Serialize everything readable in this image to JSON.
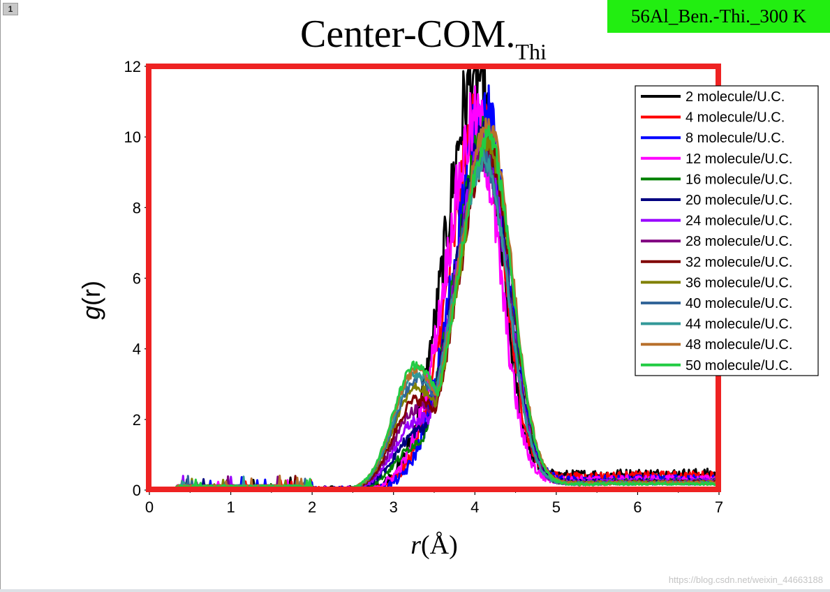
{
  "page_number": "1",
  "badge": "56Al_Ben.-Thi._300 K",
  "watermark": "https://blog.csdn.net/weixin_44663188",
  "chart_data": {
    "type": "line",
    "title": "Center-COM.",
    "title_subscript": "Thi",
    "xlabel_italic": "r",
    "xlabel_unit": "(Å)",
    "ylabel_italic": "g",
    "ylabel_unit": "(r)",
    "xlim": [
      0,
      7
    ],
    "ylim": [
      0,
      12
    ],
    "x_ticks": [
      "0",
      "1",
      "2",
      "3",
      "4",
      "5",
      "6",
      "7"
    ],
    "y_ticks": [
      "0",
      "2",
      "4",
      "6",
      "8",
      "10",
      "12"
    ],
    "legend_position": "top-right",
    "highlight_box_color": "#ee2222",
    "series": [
      {
        "name": "2 molecule/U.C.",
        "color": "#000000",
        "peak": 11.8,
        "peak_r": 4.0,
        "shoulder": 0.0,
        "tail": 0.45,
        "onset": 2.6,
        "noise": 0.45
      },
      {
        "name": "4 molecule/U.C.",
        "color": "#ff0000",
        "peak": 10.5,
        "peak_r": 4.05,
        "shoulder": 0.0,
        "tail": 0.4,
        "onset": 2.5,
        "noise": 0.4
      },
      {
        "name": "8 molecule/U.C.",
        "color": "#0000ff",
        "peak": 10.6,
        "peak_r": 4.1,
        "shoulder": 0.0,
        "tail": 0.3,
        "onset": 2.5,
        "noise": 0.4
      },
      {
        "name": "12 molecule/U.C.",
        "color": "#ff00ff",
        "peak": 10.4,
        "peak_r": 4.0,
        "shoulder": 0.0,
        "tail": 0.3,
        "onset": 2.5,
        "noise": 0.38
      },
      {
        "name": "16 molecule/U.C.",
        "color": "#008000",
        "peak": 9.9,
        "peak_r": 4.1,
        "shoulder": 0.3,
        "tail": 0.25,
        "onset": 2.4,
        "noise": 0.25
      },
      {
        "name": "20 molecule/U.C.",
        "color": "#000080",
        "peak": 9.8,
        "peak_r": 4.1,
        "shoulder": 0.4,
        "tail": 0.25,
        "onset": 2.4,
        "noise": 0.25
      },
      {
        "name": "24 molecule/U.C.",
        "color": "#9900ff",
        "peak": 9.6,
        "peak_r": 4.1,
        "shoulder": 0.5,
        "tail": 0.25,
        "onset": 2.3,
        "noise": 0.22
      },
      {
        "name": "28 molecule/U.C.",
        "color": "#800080",
        "peak": 9.5,
        "peak_r": 4.1,
        "shoulder": 0.6,
        "tail": 0.22,
        "onset": 2.3,
        "noise": 0.2
      },
      {
        "name": "32 molecule/U.C.",
        "color": "#800000",
        "peak": 9.6,
        "peak_r": 4.15,
        "shoulder": 0.7,
        "tail": 0.22,
        "onset": 2.3,
        "noise": 0.18
      },
      {
        "name": "36 molecule/U.C.",
        "color": "#808000",
        "peak": 9.8,
        "peak_r": 4.15,
        "shoulder": 0.8,
        "tail": 0.22,
        "onset": 2.2,
        "noise": 0.16
      },
      {
        "name": "40 molecule/U.C.",
        "color": "#336699",
        "peak": 9.4,
        "peak_r": 4.1,
        "shoulder": 0.85,
        "tail": 0.2,
        "onset": 2.2,
        "noise": 0.15
      },
      {
        "name": "44 molecule/U.C.",
        "color": "#339999",
        "peak": 9.3,
        "peak_r": 4.1,
        "shoulder": 0.9,
        "tail": 0.2,
        "onset": 2.2,
        "noise": 0.14
      },
      {
        "name": "48 molecule/U.C.",
        "color": "#b8702c",
        "peak": 10.4,
        "peak_r": 4.15,
        "shoulder": 0.95,
        "tail": 0.2,
        "onset": 2.2,
        "noise": 0.14
      },
      {
        "name": "50 molecule/U.C.",
        "color": "#22cc44",
        "peak": 10.0,
        "peak_r": 4.15,
        "shoulder": 1.0,
        "tail": 0.18,
        "onset": 2.2,
        "noise": 0.12
      }
    ]
  }
}
